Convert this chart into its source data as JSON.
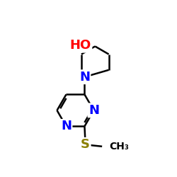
{
  "background_color": "#ffffff",
  "atom_colors": {
    "N": "#0000ff",
    "O": "#ff0000",
    "S": "#8b8000",
    "C": "#000000"
  },
  "bond_color": "#000000",
  "bond_width": 1.8,
  "font_size_atom": 13,
  "font_size_small": 10,
  "figsize": [
    2.5,
    2.5
  ],
  "dpi": 100
}
